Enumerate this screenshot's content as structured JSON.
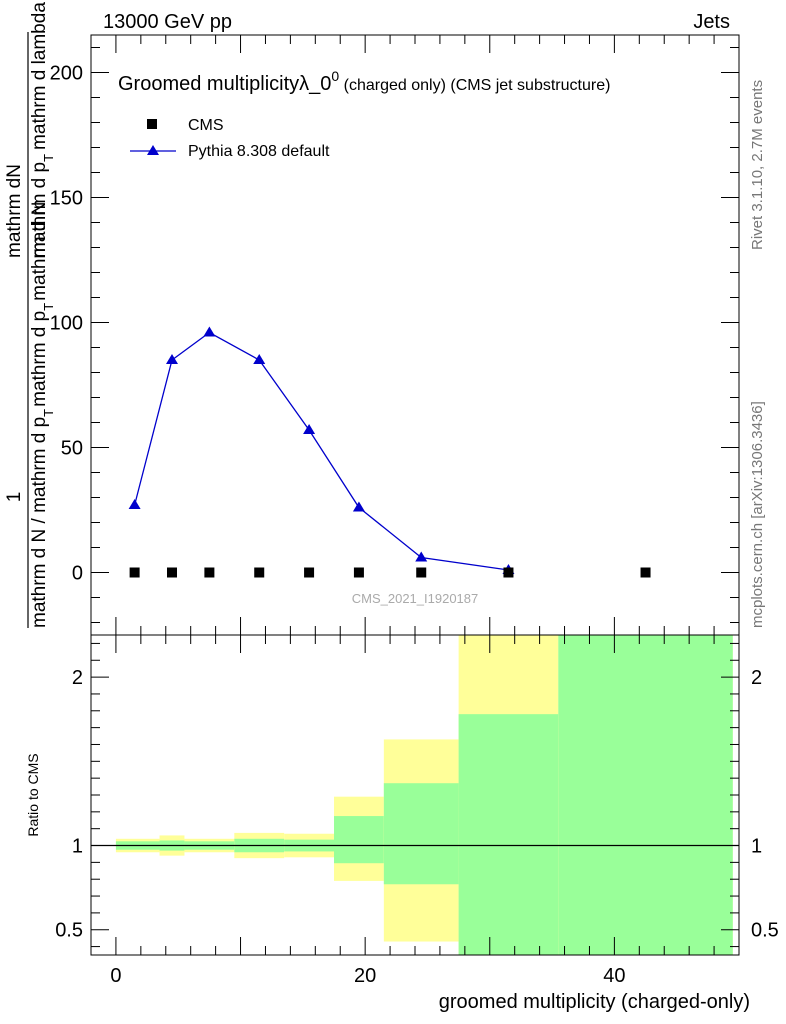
{
  "header": {
    "left": "13000 GeV pp",
    "right": "Jets"
  },
  "side_labels": {
    "rivet": "Rivet 3.1.10,  2.7M events",
    "mcplots": "mcplots.cern.ch [arXiv:1306.3436]"
  },
  "chart_data": [
    {
      "type": "scatter",
      "title_main": "Groomed multiplicityλ_0",
      "title_sup": "0",
      "title_tail": " (charged only) (CMS jet substructure)",
      "ylabel_num": "mathrm dN",
      "ylabel_frac_num": "1",
      "ylabel_den": "mathrm d p",
      "ylabel_sub": "T",
      "ylabel_den2": "mathrm d lambda",
      "ylabel_bottom": "mathrm d N / mathrm d p",
      "ylabel_bottom_sub": "T",
      "ylabel_bottom2": "mathrm d p",
      "ylabel_bottom_sub2": "T",
      "ylabel_bottom3": "mathrm d N",
      "watermark": "CMS_2021_I1920187",
      "xlim": [
        -2,
        50
      ],
      "ylim": [
        -25,
        215
      ],
      "yticks": [
        0,
        50,
        100,
        150,
        200
      ],
      "ytick_labels": [
        "0",
        "50",
        "100",
        "150",
        "200"
      ],
      "legend": [
        {
          "name": "CMS",
          "marker": "square",
          "color": "#000000"
        },
        {
          "name": "Pythia 8.308 default",
          "marker": "triangle",
          "color": "#0000cc"
        }
      ],
      "series": [
        {
          "name": "CMS",
          "x": [
            1.5,
            4.5,
            7.5,
            11.5,
            15.5,
            19.5,
            24.5,
            31.5,
            42.5
          ],
          "y": [
            0,
            0,
            0,
            0,
            0,
            0,
            0,
            0,
            0
          ]
        },
        {
          "name": "Pythia 8.308 default",
          "x": [
            1.5,
            4.5,
            7.5,
            11.5,
            15.5,
            19.5,
            24.5,
            31.5
          ],
          "y": [
            27,
            85,
            96,
            85,
            57,
            26,
            6,
            1
          ]
        }
      ]
    },
    {
      "type": "area",
      "ylabel": "Ratio to CMS",
      "xlabel": "groomed multiplicity (charged-only)",
      "xlim": [
        -2,
        50
      ],
      "ylim": [
        0.35,
        2.25
      ],
      "xticks": [
        0,
        20,
        40
      ],
      "xtick_labels": [
        "0",
        "20",
        "40"
      ],
      "yticks": [
        0.5,
        1,
        2
      ],
      "ytick_labels": [
        "0.5",
        "1",
        "2"
      ],
      "colors": {
        "yellow": "#ffff99",
        "green": "#99ff99"
      },
      "bins": [
        {
          "lo": 0,
          "hi": 3.5,
          "y_lo": 0.96,
          "y_hi": 1.04,
          "g_lo": 0.975,
          "g_hi": 1.025
        },
        {
          "lo": 3.5,
          "hi": 5.5,
          "y_lo": 0.94,
          "y_hi": 1.06,
          "g_lo": 0.97,
          "g_hi": 1.03
        },
        {
          "lo": 5.5,
          "hi": 9.5,
          "y_lo": 0.96,
          "y_hi": 1.04,
          "g_lo": 0.975,
          "g_hi": 1.025
        },
        {
          "lo": 9.5,
          "hi": 13.5,
          "y_lo": 0.925,
          "y_hi": 1.075,
          "g_lo": 0.96,
          "g_hi": 1.04
        },
        {
          "lo": 13.5,
          "hi": 17.5,
          "y_lo": 0.93,
          "y_hi": 1.07,
          "g_lo": 0.965,
          "g_hi": 1.035
        },
        {
          "lo": 17.5,
          "hi": 21.5,
          "y_lo": 0.79,
          "y_hi": 1.29,
          "g_lo": 0.895,
          "g_hi": 1.175
        },
        {
          "lo": 21.5,
          "hi": 27.5,
          "y_lo": 0.43,
          "y_hi": 1.63,
          "g_lo": 0.77,
          "g_hi": 1.37
        },
        {
          "lo": 27.5,
          "hi": 35.5,
          "y_lo": 0.35,
          "y_hi": 2.25,
          "g_lo": 0.35,
          "g_hi": 1.78
        },
        {
          "lo": 35.5,
          "hi": 49.5,
          "y_lo": 0.35,
          "y_hi": 2.25,
          "g_lo": 0.35,
          "g_hi": 2.25
        }
      ]
    }
  ]
}
